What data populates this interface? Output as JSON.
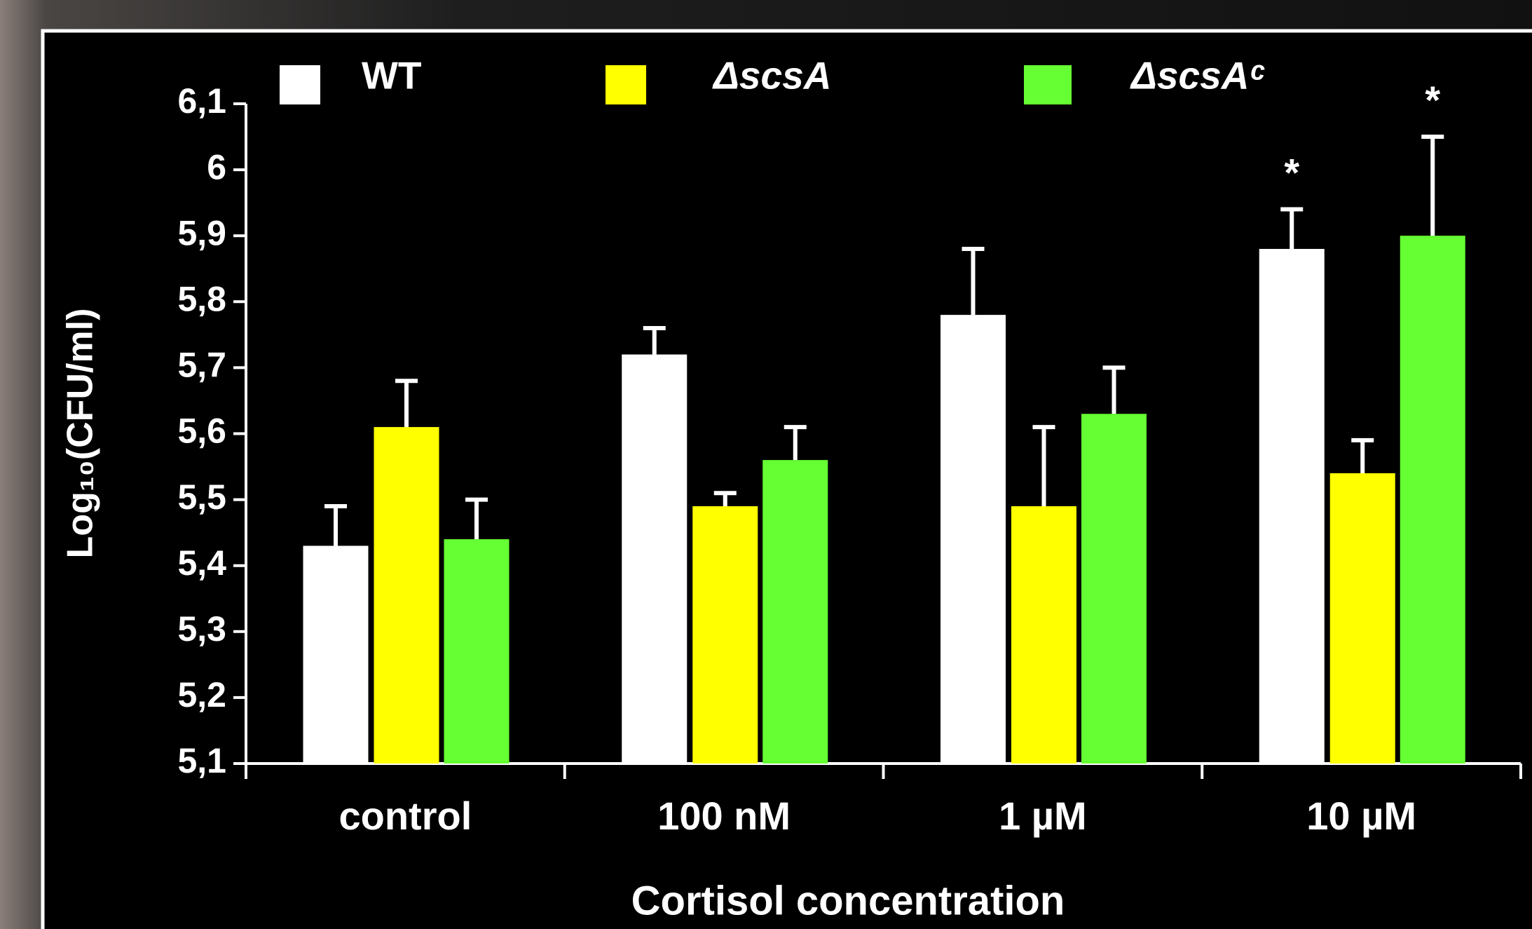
{
  "chart_data": {
    "type": "bar",
    "y_label": "Log₁₀(CFU/ml)",
    "x_label": "Cortisol concentration",
    "categories": [
      "control",
      "100 nM",
      "1 µM",
      "10 µM"
    ],
    "series": [
      {
        "name": "WT",
        "color": "#ffffff",
        "values": [
          5.43,
          5.72,
          5.78,
          5.88
        ],
        "errors": [
          0.06,
          0.04,
          0.1,
          0.06
        ],
        "significance": [
          null,
          null,
          null,
          "*"
        ]
      },
      {
        "name": "ΔscsA",
        "color": "#ffff00",
        "values": [
          5.61,
          5.49,
          5.49,
          5.54
        ],
        "errors": [
          0.07,
          0.02,
          0.12,
          0.05
        ],
        "significance": [
          null,
          null,
          null,
          null
        ]
      },
      {
        "name": "ΔscsAᶜ",
        "color": "#66ff33",
        "values": [
          5.44,
          5.56,
          5.63,
          5.9
        ],
        "errors": [
          0.06,
          0.05,
          0.07,
          0.15
        ],
        "significance": [
          null,
          null,
          null,
          "*"
        ]
      }
    ],
    "ylim": [
      5.1,
      6.1
    ],
    "yticks": [
      {
        "value": 5.1,
        "label": "5,1"
      },
      {
        "value": 5.2,
        "label": "5,2"
      },
      {
        "value": 5.3,
        "label": "5,3"
      },
      {
        "value": 5.4,
        "label": "5,4"
      },
      {
        "value": 5.5,
        "label": "5,5"
      },
      {
        "value": 5.6,
        "label": "5,6"
      },
      {
        "value": 5.7,
        "label": "5,7"
      },
      {
        "value": 5.8,
        "label": "5,8"
      },
      {
        "value": 5.9,
        "label": "5,9"
      },
      6,
      {
        "value": 6.1,
        "label": "6,1"
      }
    ],
    "grid": false
  }
}
